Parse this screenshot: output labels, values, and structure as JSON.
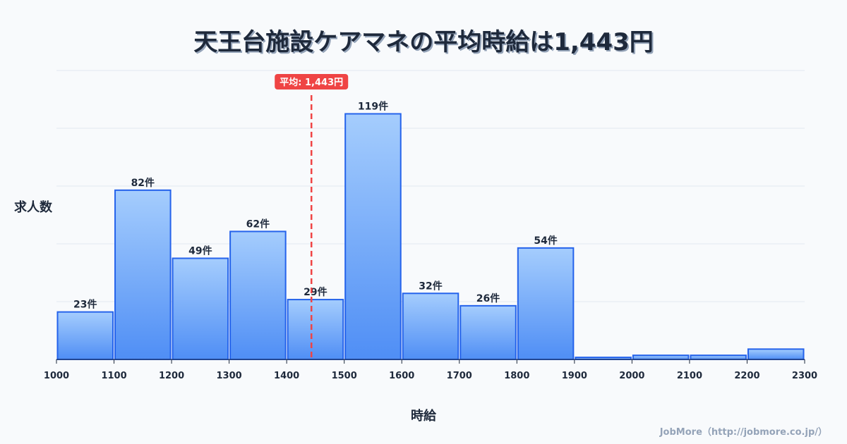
{
  "chart_data": {
    "type": "bar",
    "title": "天王台施設ケアマネの平均時給は1,443円",
    "xlabel": "時給",
    "ylabel": "求人数",
    "bin_edges": [
      1000,
      1100,
      1200,
      1300,
      1400,
      1500,
      1600,
      1700,
      1800,
      1900,
      2000,
      2100,
      2200,
      2300
    ],
    "values": [
      23,
      82,
      49,
      62,
      29,
      119,
      32,
      26,
      54,
      1,
      2,
      2,
      5
    ],
    "data_labels": [
      "23件",
      "82件",
      "49件",
      "62件",
      "29件",
      "119件",
      "32件",
      "26件",
      "54件",
      "",
      "",
      "",
      ""
    ],
    "ylim": [
      0,
      140
    ],
    "y_grid_step": 28,
    "grid": true,
    "mean": {
      "value": 1443,
      "label": "平均: 1,443円"
    },
    "colors": {
      "bar_top": "#a5cdfd",
      "bar_bottom": "#4f8ef5",
      "bar_stroke": "#2563eb",
      "mean_line": "#ef4444"
    }
  },
  "credit": "JobMore（http://jobmore.co.jp/）"
}
